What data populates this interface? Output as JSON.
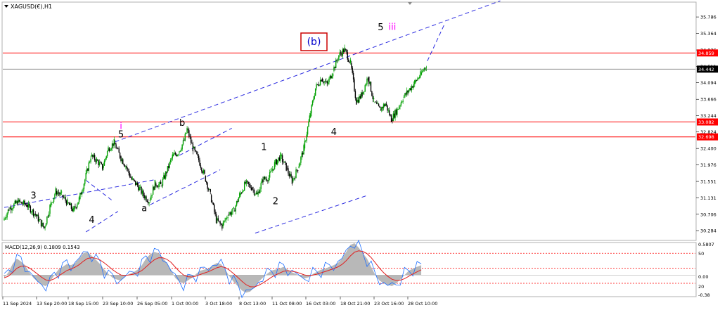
{
  "header": {
    "symbol_label": "XAGUSD(€),H1"
  },
  "chart_data": {
    "type": "candlestick",
    "symbol": "XAGUSD(€)",
    "timeframe": "H1",
    "y_range": [
      30.05,
      36.15
    ],
    "price_ticks": [
      "35.786",
      "35.364",
      "34.936",
      "34.511",
      "34.094",
      "33.666",
      "33.244",
      "32.824",
      "32.400",
      "31.976",
      "31.551",
      "31.131",
      "30.706",
      "30.284"
    ],
    "x_ticks": [
      "11 Sep 2024",
      "13 Sep 20:00",
      "18 Sep 15:00",
      "23 Sep 10:00",
      "26 Sep 05:00",
      "1 Oct 00:00",
      "3 Oct 18:00",
      "8 Oct 13:00",
      "11 Oct 08:00",
      "16 Oct 03:00",
      "18 Oct 21:00",
      "23 Oct 16:00",
      "28 Oct 10:00"
    ],
    "horizontal_levels": [
      {
        "value": 34.859,
        "label": "34.859",
        "color": "#ff0000",
        "labeled": true
      },
      {
        "value": 33.082,
        "label": "33.082",
        "color": "#ff0000",
        "labeled": true
      },
      {
        "value": 32.698,
        "label": "32.698",
        "color": "#ff0000",
        "labeled": true
      },
      {
        "value": 34.442,
        "label": "34.442",
        "color": "#000000",
        "labeled": false
      }
    ],
    "current_price": "34.442",
    "price_path": [
      [
        0,
        30.55
      ],
      [
        2,
        30.85
      ],
      [
        5,
        31.02
      ],
      [
        8,
        30.95
      ],
      [
        11,
        30.7
      ],
      [
        14,
        30.35
      ],
      [
        16,
        30.9
      ],
      [
        18,
        31.3
      ],
      [
        20,
        31.2
      ],
      [
        22,
        31.0
      ],
      [
        24,
        30.8
      ],
      [
        26,
        31.1
      ],
      [
        28,
        31.6
      ],
      [
        30,
        32.2
      ],
      [
        32,
        32.1
      ],
      [
        34,
        31.9
      ],
      [
        36,
        32.4
      ],
      [
        38,
        32.55
      ],
      [
        40,
        32.2
      ],
      [
        42,
        31.95
      ],
      [
        44,
        31.6
      ],
      [
        46,
        31.45
      ],
      [
        48,
        31.2
      ],
      [
        50,
        31.05
      ],
      [
        52,
        31.5
      ],
      [
        54,
        31.45
      ],
      [
        56,
        31.8
      ],
      [
        58,
        32.2
      ],
      [
        60,
        32.3
      ],
      [
        62,
        32.6
      ],
      [
        63,
        32.9
      ],
      [
        65,
        32.4
      ],
      [
        67,
        32.1
      ],
      [
        69,
        31.7
      ],
      [
        71,
        31.2
      ],
      [
        73,
        30.55
      ],
      [
        75,
        30.4
      ],
      [
        77,
        30.7
      ],
      [
        79,
        30.8
      ],
      [
        81,
        31.2
      ],
      [
        83,
        31.5
      ],
      [
        85,
        31.4
      ],
      [
        87,
        31.2
      ],
      [
        89,
        31.6
      ],
      [
        91,
        31.65
      ],
      [
        93,
        32.0
      ],
      [
        95,
        32.2
      ],
      [
        97,
        31.9
      ],
      [
        99,
        31.55
      ],
      [
        101,
        31.9
      ],
      [
        103,
        32.4
      ],
      [
        105,
        33.2
      ],
      [
        107,
        33.95
      ],
      [
        109,
        34.2
      ],
      [
        111,
        34.05
      ],
      [
        113,
        34.4
      ],
      [
        115,
        34.8
      ],
      [
        117,
        34.95
      ],
      [
        119,
        34.6
      ],
      [
        121,
        33.6
      ],
      [
        123,
        33.8
      ],
      [
        125,
        34.25
      ],
      [
        127,
        33.6
      ],
      [
        129,
        33.4
      ],
      [
        131,
        33.55
      ],
      [
        133,
        33.15
      ],
      [
        135,
        33.4
      ],
      [
        137,
        33.7
      ],
      [
        139,
        33.9
      ],
      [
        141,
        34.1
      ],
      [
        143,
        34.3
      ],
      [
        145,
        34.55
      ]
    ],
    "wave_labels": [
      {
        "text": "3",
        "x": 10,
        "y": 31.11,
        "color": "#000000"
      },
      {
        "text": "4",
        "x": 30,
        "y": 30.48,
        "color": "#000000"
      },
      {
        "text": "i",
        "x": 40,
        "y": 32.9,
        "color": "#ff00ff"
      },
      {
        "text": "5",
        "x": 40,
        "y": 32.68,
        "color": "#000000"
      },
      {
        "text": "a",
        "x": 48,
        "y": 30.78,
        "color": "#000000"
      },
      {
        "text": "b",
        "x": 61,
        "y": 32.98,
        "color": "#000000"
      },
      {
        "text": "1",
        "x": 89,
        "y": 32.36,
        "color": "#000000"
      },
      {
        "text": "2",
        "x": 93,
        "y": 30.96,
        "color": "#000000"
      },
      {
        "text": "3",
        "x": 104,
        "y": 35.09,
        "color": "#000000"
      },
      {
        "text": "4",
        "x": 113,
        "y": 32.75,
        "color": "#000000"
      },
      {
        "text": "5",
        "x": 129,
        "y": 35.44,
        "color": "#000000"
      },
      {
        "text": "iii",
        "x": 133,
        "y": 35.45,
        "color": "#ff00ff"
      }
    ],
    "boxed_label": {
      "text": "(b)",
      "color": "#0000cc",
      "border": "#cc0000"
    },
    "macd": {
      "label": "MACD(12,26,9) 0.1809 0.1543",
      "scale_ticks": [
        "0.5807",
        "50",
        "0.00",
        "20",
        "-0.38"
      ],
      "levels": [
        "80",
        "50",
        "20"
      ],
      "histogram": [
        -0.05,
        0.05,
        0.2,
        0.3,
        0.25,
        0.18,
        0.05,
        -0.05,
        -0.12,
        -0.18,
        -0.2,
        -0.12,
        0.0,
        0.1,
        0.15,
        0.2,
        0.18,
        0.22,
        0.3,
        0.4,
        0.42,
        0.35,
        0.28,
        0.2,
        0.1,
        0.02,
        -0.05,
        -0.08,
        -0.1,
        -0.02,
        0.02,
        0.05,
        0.1,
        0.18,
        0.3,
        0.38,
        0.42,
        0.4,
        0.32,
        0.22,
        0.1,
        -0.05,
        -0.12,
        -0.15,
        -0.1,
        -0.05,
        0.02,
        0.08,
        0.1,
        0.12,
        0.18,
        0.22,
        0.2,
        0.1,
        -0.02,
        -0.12,
        -0.2,
        -0.28,
        -0.32,
        -0.3,
        -0.22,
        -0.12,
        -0.05,
        0.02,
        0.08,
        0.1,
        0.12,
        0.15,
        0.1,
        0.05,
        0.02,
        -0.03,
        -0.06,
        -0.04,
        0.02,
        0.06,
        0.1,
        0.12,
        0.15,
        0.18,
        0.22,
        0.3,
        0.42,
        0.55,
        0.58,
        0.5,
        0.4,
        0.3,
        0.15,
        0.0,
        -0.1,
        -0.15,
        -0.18,
        -0.2,
        -0.15,
        -0.08,
        0.0,
        0.08,
        0.12,
        0.15,
        0.18
      ]
    }
  }
}
